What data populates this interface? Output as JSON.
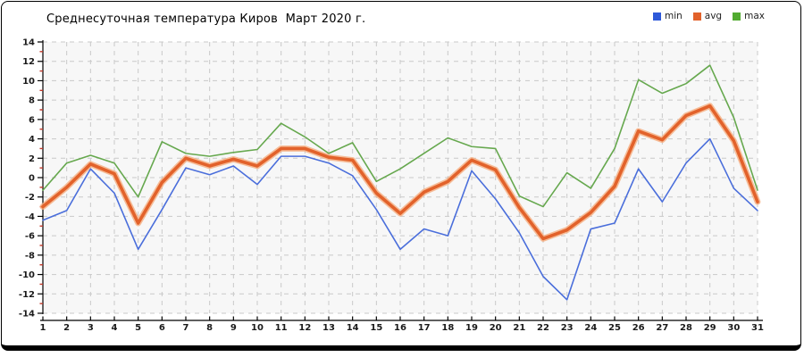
{
  "header": {
    "title": "Среднесуточная температура Киров  Март 2020 г."
  },
  "legend": {
    "position": "top-right",
    "items": [
      {
        "label": "min",
        "color": "#2e59d9"
      },
      {
        "label": "avg",
        "color": "#e2622b"
      },
      {
        "label": "max",
        "color": "#52ab31"
      }
    ]
  },
  "chart_data": {
    "type": "line",
    "title": "Среднесуточная температура Киров  Март 2020 г.",
    "xlabel": "",
    "ylabel": "",
    "categories": [
      1,
      2,
      3,
      4,
      5,
      6,
      7,
      8,
      9,
      10,
      11,
      12,
      13,
      14,
      15,
      16,
      17,
      18,
      19,
      20,
      21,
      22,
      23,
      24,
      25,
      26,
      27,
      28,
      29,
      30,
      31
    ],
    "series": [
      {
        "name": "max",
        "color": "#66a84e",
        "width": 1.6,
        "values": [
          -1.3,
          1.5,
          2.3,
          1.5,
          -2.0,
          3.7,
          2.5,
          2.2,
          2.6,
          2.9,
          5.6,
          4.2,
          2.5,
          3.6,
          -0.4,
          0.9,
          2.5,
          4.1,
          3.2,
          3.0,
          -1.9,
          -3.0,
          0.5,
          -1.1,
          3.0,
          10.1,
          8.7,
          9.7,
          11.6,
          6.2,
          -1.3
        ]
      },
      {
        "name": "min",
        "color": "#4a6edb",
        "width": 1.6,
        "values": [
          -4.4,
          -3.4,
          0.9,
          -1.6,
          -7.4,
          -3.3,
          1.0,
          0.3,
          1.2,
          -0.7,
          2.2,
          2.2,
          1.5,
          0.2,
          -3.3,
          -7.4,
          -5.3,
          -6.0,
          0.7,
          -2.2,
          -5.7,
          -10.2,
          -12.6,
          -5.3,
          -4.7,
          0.9,
          -2.5,
          1.5,
          4.0,
          -1.1,
          -3.4
        ]
      },
      {
        "name": "avg",
        "color": "#e2622b",
        "halo": "#f5ad7e",
        "width": 3.6,
        "values": [
          -3.0,
          -1.0,
          1.4,
          0.4,
          -4.7,
          -0.5,
          2.0,
          1.2,
          1.9,
          1.2,
          3.0,
          3.0,
          2.1,
          1.8,
          -1.6,
          -3.7,
          -1.5,
          -0.4,
          1.8,
          0.8,
          -3.1,
          -6.3,
          -5.4,
          -3.6,
          -0.9,
          4.8,
          3.9,
          6.4,
          7.4,
          3.8,
          -2.5
        ]
      }
    ],
    "ylim": [
      -14,
      14
    ],
    "ytick_step": 2,
    "grid": {
      "show": true,
      "color": "#c9c9c9",
      "dash": "5 5"
    },
    "plot_bg": "#f7f7f7",
    "axis": {
      "line_color": "#000000",
      "tick_color": "#000000",
      "minor_tick_color": "#c0392b",
      "label_color": "#1a1a1a"
    },
    "legend_position": "top-right"
  }
}
